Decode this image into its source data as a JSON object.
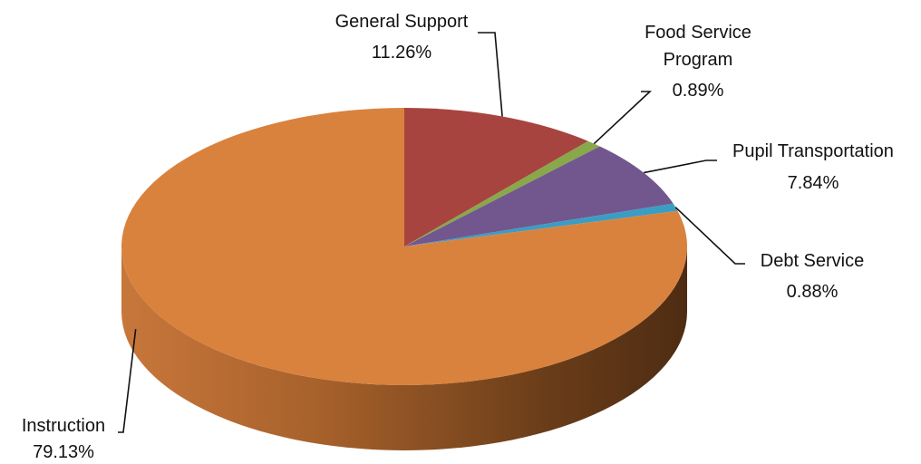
{
  "chart_data": {
    "type": "pie",
    "title": "",
    "three_d": true,
    "slices": [
      {
        "label": "General Support",
        "value": 11.26,
        "display": "11.26%",
        "color": "#a84440"
      },
      {
        "label": "Food Service Program",
        "value": 0.89,
        "display": "0.89%",
        "color": "#88a84a"
      },
      {
        "label": "Pupil Transportation",
        "value": 7.84,
        "display": "7.84%",
        "color": "#72578f"
      },
      {
        "label": "Debt Service",
        "value": 0.88,
        "display": "0.88%",
        "color": "#3b9dc3"
      },
      {
        "label": "Instruction",
        "value": 79.13,
        "display": "79.13%",
        "color": "#d9823e"
      }
    ]
  }
}
